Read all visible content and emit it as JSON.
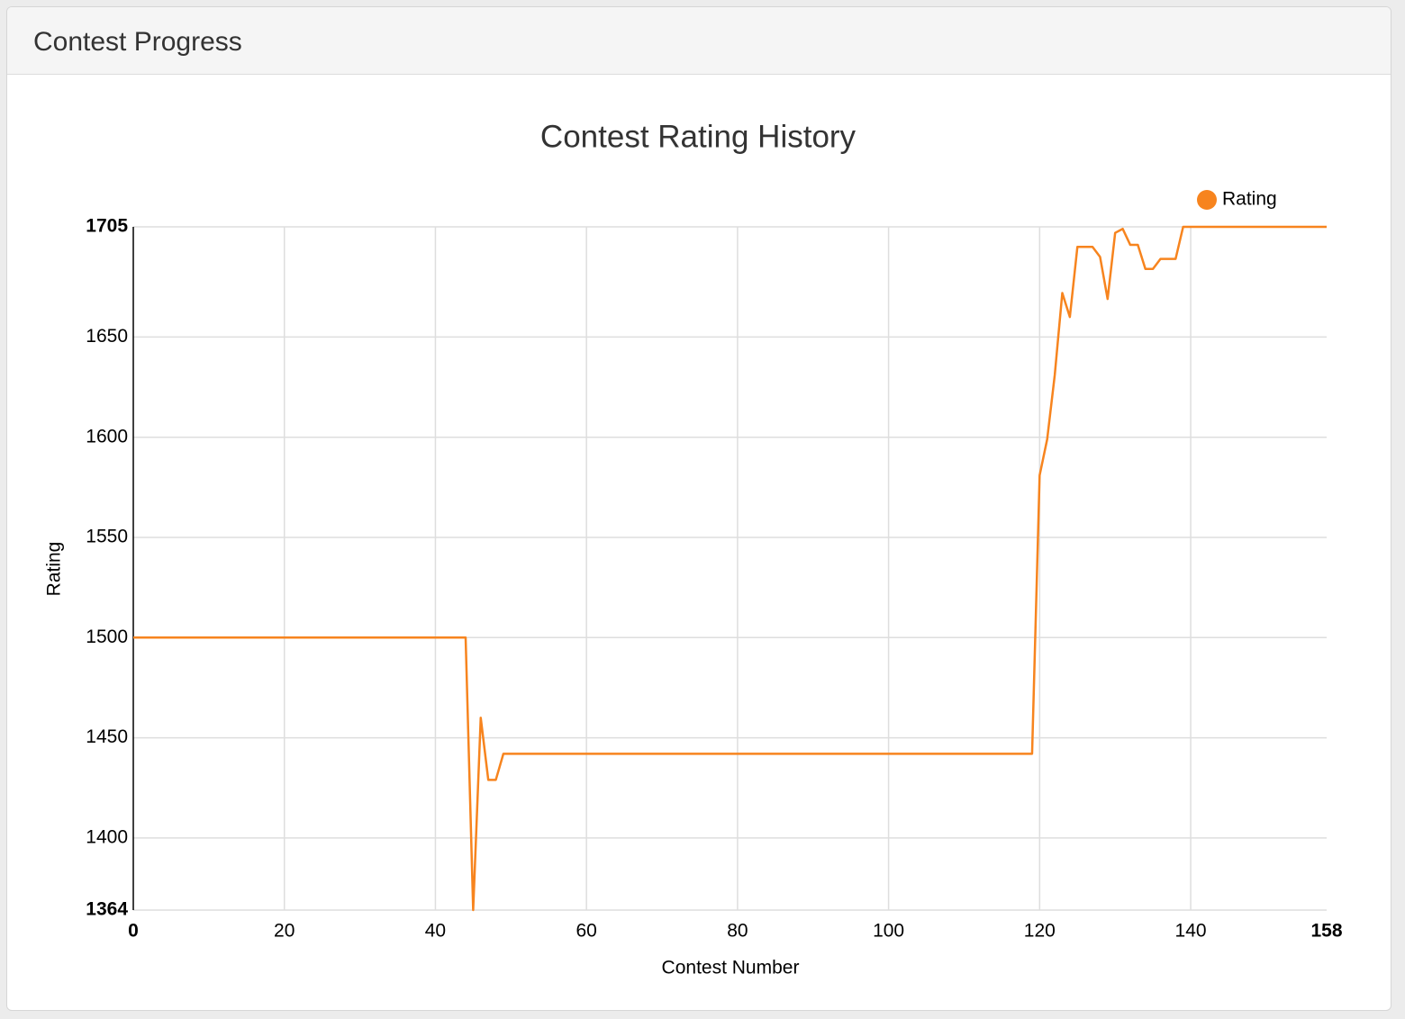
{
  "panel": {
    "title": "Contest Progress"
  },
  "chart_data": {
    "type": "line",
    "title": "Contest Rating History",
    "x_label": "Contest Number",
    "y_label": "Rating",
    "x": [
      0,
      44,
      45,
      46,
      47,
      48,
      49,
      119,
      120,
      121,
      122,
      123,
      124,
      125,
      127,
      128,
      129,
      130,
      131,
      132,
      133,
      134,
      135,
      136,
      138,
      139,
      158
    ],
    "series": [
      {
        "name": "Rating",
        "color": "#f7841e",
        "values": [
          1500,
          1500,
          1364,
          1460,
          1429,
          1429,
          1442,
          1442,
          1581,
          1599,
          1631,
          1672,
          1660,
          1695,
          1695,
          1690,
          1669,
          1702,
          1704,
          1696,
          1696,
          1684,
          1684,
          1689,
          1689,
          1705,
          1705
        ]
      }
    ],
    "xlim": [
      0,
      158
    ],
    "xticks": [
      0,
      20,
      40,
      60,
      80,
      100,
      120,
      140,
      158
    ],
    "ylim": [
      1364,
      1705
    ],
    "yticks": [
      1364,
      1400,
      1450,
      1500,
      1550,
      1600,
      1650,
      1705
    ],
    "grid": true,
    "legend": "top-right"
  }
}
